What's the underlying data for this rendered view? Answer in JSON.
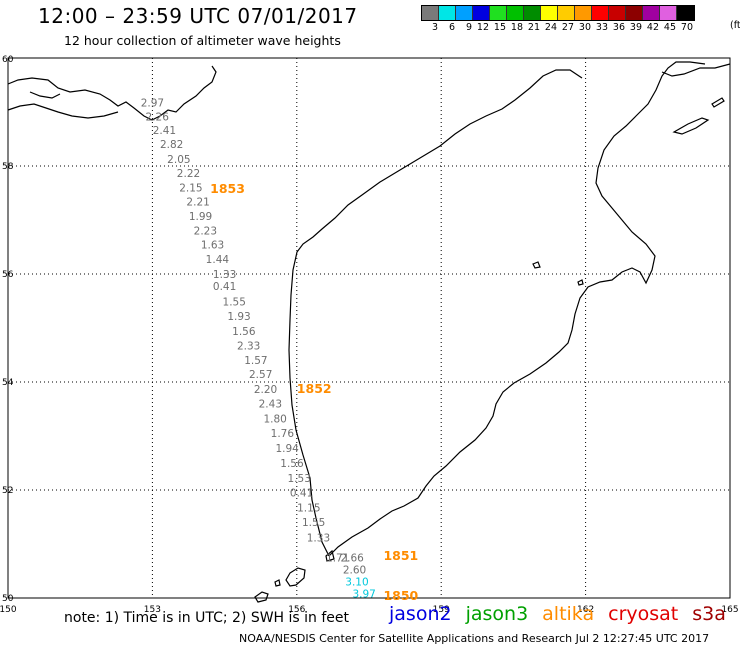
{
  "header": {
    "title": "12:00 – 23:59 UTC 07/01/2017",
    "subtitle": "12 hour collection of altimeter wave heights"
  },
  "legend": {
    "unit": "(ft)",
    "bins": [
      {
        "label": "3",
        "color": "#7a7a7a"
      },
      {
        "label": "6",
        "color": "#00e6e6"
      },
      {
        "label": "9",
        "color": "#00a0ff"
      },
      {
        "label": "12",
        "color": "#0000e0"
      },
      {
        "label": "15",
        "color": "#20e020"
      },
      {
        "label": "18",
        "color": "#00c000"
      },
      {
        "label": "21",
        "color": "#008c00"
      },
      {
        "label": "24",
        "color": "#ffff00"
      },
      {
        "label": "27",
        "color": "#ffcc00"
      },
      {
        "label": "30",
        "color": "#ff9900"
      },
      {
        "label": "33",
        "color": "#ff0000"
      },
      {
        "label": "36",
        "color": "#c80000"
      },
      {
        "label": "39",
        "color": "#8c0000"
      },
      {
        "label": "42",
        "color": "#a000a0"
      },
      {
        "label": "45",
        "color": "#e060e0"
      },
      {
        "label": "70",
        "color": "#000000"
      }
    ]
  },
  "map": {
    "lon_range": [
      150,
      165
    ],
    "lat_range": [
      50,
      60
    ],
    "lon_ticks": [
      "150",
      "153",
      "156",
      "159",
      "162",
      "165"
    ],
    "lat_ticks": [
      "60",
      "58",
      "56",
      "54",
      "52",
      "50"
    ],
    "track_colors": {
      "gray": "#6e6e6e",
      "cyan": "#00c8dc",
      "time": "#ff8c00"
    },
    "readings": [
      {
        "lon": 153.0,
        "lat": 59.1,
        "value": "2.97",
        "color": "gray"
      },
      {
        "lon": 153.1,
        "lat": 58.84,
        "value": "2.26",
        "color": "gray"
      },
      {
        "lon": 153.25,
        "lat": 58.59,
        "value": "2.41",
        "color": "gray"
      },
      {
        "lon": 153.4,
        "lat": 58.33,
        "value": "2.82",
        "color": "gray"
      },
      {
        "lon": 153.55,
        "lat": 58.06,
        "value": "2.05",
        "color": "gray"
      },
      {
        "lon": 153.75,
        "lat": 57.8,
        "value": "2.22",
        "color": "gray"
      },
      {
        "lon": 153.8,
        "lat": 57.53,
        "value": "2.15",
        "color": "gray"
      },
      {
        "lon": 153.95,
        "lat": 57.27,
        "value": "2.21",
        "color": "gray"
      },
      {
        "lon": 154.0,
        "lat": 57.0,
        "value": "1.99",
        "color": "gray"
      },
      {
        "lon": 154.1,
        "lat": 56.73,
        "value": "2.23",
        "color": "gray"
      },
      {
        "lon": 154.25,
        "lat": 56.47,
        "value": "1.63",
        "color": "gray"
      },
      {
        "lon": 154.35,
        "lat": 56.2,
        "value": "1.44",
        "color": "gray"
      },
      {
        "lon": 154.5,
        "lat": 55.93,
        "value": "1.33",
        "color": "gray"
      },
      {
        "lon": 154.5,
        "lat": 55.7,
        "value": "0.41",
        "color": "gray"
      },
      {
        "lon": 154.7,
        "lat": 55.42,
        "value": "1.55",
        "color": "gray"
      },
      {
        "lon": 154.8,
        "lat": 55.15,
        "value": "1.93",
        "color": "gray"
      },
      {
        "lon": 154.9,
        "lat": 54.87,
        "value": "1.56",
        "color": "gray"
      },
      {
        "lon": 155.0,
        "lat": 54.6,
        "value": "2.33",
        "color": "gray"
      },
      {
        "lon": 155.15,
        "lat": 54.33,
        "value": "1.57",
        "color": "gray"
      },
      {
        "lon": 155.25,
        "lat": 54.07,
        "value": "2.57",
        "color": "gray"
      },
      {
        "lon": 155.35,
        "lat": 53.8,
        "value": "2.20",
        "color": "gray"
      },
      {
        "lon": 155.45,
        "lat": 53.53,
        "value": "2.43",
        "color": "gray"
      },
      {
        "lon": 155.55,
        "lat": 53.25,
        "value": "1.80",
        "color": "gray"
      },
      {
        "lon": 155.7,
        "lat": 52.98,
        "value": "1.76",
        "color": "gray"
      },
      {
        "lon": 155.8,
        "lat": 52.7,
        "value": "1.94",
        "color": "gray"
      },
      {
        "lon": 155.9,
        "lat": 52.43,
        "value": "1.56",
        "color": "gray"
      },
      {
        "lon": 156.05,
        "lat": 52.15,
        "value": "1.53",
        "color": "gray"
      },
      {
        "lon": 156.1,
        "lat": 51.88,
        "value": "0.41",
        "color": "gray"
      },
      {
        "lon": 156.25,
        "lat": 51.6,
        "value": "1.15",
        "color": "gray"
      },
      {
        "lon": 156.35,
        "lat": 51.33,
        "value": "1.55",
        "color": "gray"
      },
      {
        "lon": 156.45,
        "lat": 51.05,
        "value": "1.33",
        "color": "gray"
      },
      {
        "lon": 156.85,
        "lat": 50.68,
        "value": "1.71",
        "color": "gray"
      },
      {
        "lon": 157.15,
        "lat": 50.68,
        "value": "2.66",
        "color": "gray"
      },
      {
        "lon": 157.2,
        "lat": 50.45,
        "value": "2.60",
        "color": "gray"
      },
      {
        "lon": 157.25,
        "lat": 50.23,
        "value": "3.10",
        "color": "cyan"
      },
      {
        "lon": 157.4,
        "lat": 50.01,
        "value": "3.97",
        "color": "cyan"
      }
    ],
    "pass_times": [
      {
        "lon": 154.2,
        "lat": 57.5,
        "label": "1853"
      },
      {
        "lon": 156.0,
        "lat": 53.8,
        "label": "1852"
      },
      {
        "lon": 157.8,
        "lat": 50.7,
        "label": "1851"
      },
      {
        "lon": 157.8,
        "lat": 49.96,
        "label": "1850"
      }
    ]
  },
  "note": "note: 1) Time is in UTC; 2) SWH is in feet",
  "satellites": [
    {
      "name": "jason2",
      "color": "#0000e0"
    },
    {
      "name": "jason3",
      "color": "#00a000"
    },
    {
      "name": "altika",
      "color": "#ff8c00"
    },
    {
      "name": "cryosat",
      "color": "#e00000"
    },
    {
      "name": "s3a",
      "color": "#a00000"
    }
  ],
  "footer": "NOAA/NESDIS Center for Satellite Applications and Research   Jul  2 12:27:45 UTC 2017"
}
